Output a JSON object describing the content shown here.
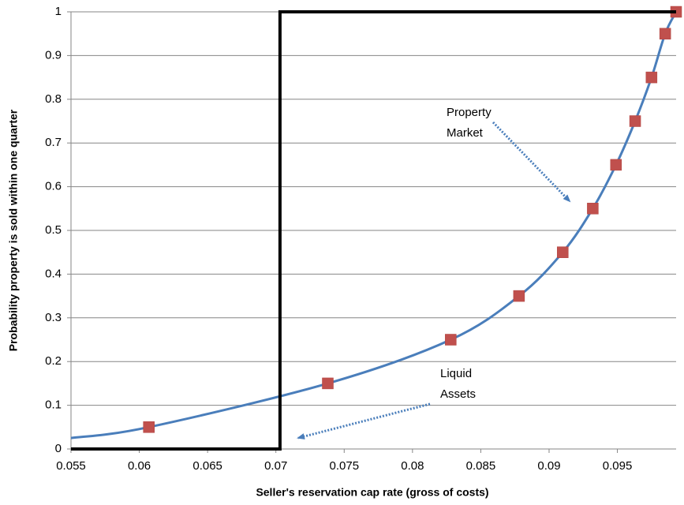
{
  "chart_data": {
    "type": "scatter",
    "xlabel": "Seller's reservation cap rate (gross of costs)",
    "ylabel": "Probability property is sold within one quarter",
    "xlim": [
      0.055,
      0.0993
    ],
    "ylim": [
      0,
      1
    ],
    "xticks": [
      0.055,
      0.06,
      0.065,
      0.07,
      0.075,
      0.08,
      0.085,
      0.09,
      0.095
    ],
    "yticks": [
      0,
      0.1,
      0.2,
      0.3,
      0.4,
      0.5,
      0.6,
      0.7,
      0.8,
      0.9,
      1
    ],
    "grid": true,
    "series": [
      {
        "mode": "line",
        "smooth": true,
        "color": "#4a7ebb",
        "x": [
          0.055,
          0.0607,
          0.0738,
          0.0828,
          0.0878,
          0.091,
          0.0932,
          0.0949,
          0.0963,
          0.0975,
          0.0985,
          0.0993
        ],
        "y": [
          0.025,
          0.05,
          0.15,
          0.25,
          0.35,
          0.45,
          0.55,
          0.65,
          0.75,
          0.85,
          0.95,
          1
        ]
      },
      {
        "mode": "markers",
        "color": "#c0504d",
        "x": [
          0.0607,
          0.0738,
          0.0828,
          0.0878,
          0.091,
          0.0932,
          0.0949,
          0.0963,
          0.0975,
          0.0985,
          0.0993
        ],
        "y": [
          0.05,
          0.15,
          0.25,
          0.35,
          0.45,
          0.55,
          0.65,
          0.75,
          0.85,
          0.95,
          1
        ]
      },
      {
        "mode": "line",
        "smooth": false,
        "color": "#000000",
        "x": [
          0.055,
          0.0703,
          0.0703,
          0.0993
        ],
        "y": [
          0,
          0,
          1,
          1
        ]
      }
    ],
    "annotations": [
      {
        "lines": [
          "Property",
          "Market"
        ]
      },
      {
        "lines": [
          "Liquid",
          "Assets"
        ]
      }
    ]
  }
}
